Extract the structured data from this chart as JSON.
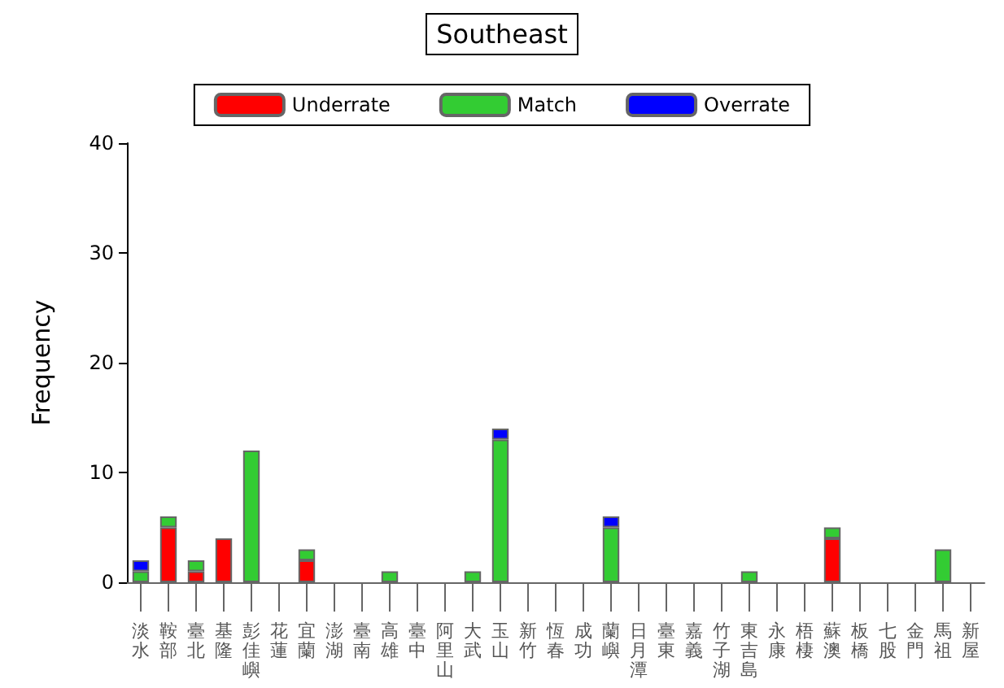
{
  "chart_data": {
    "type": "bar",
    "title": "Southeast",
    "ylabel": "Frequency",
    "stacked": true,
    "legend": "top",
    "grid": false,
    "categories": [
      "淡水",
      "鞍部",
      "臺北",
      "基隆",
      "彭佳嶼",
      "花蓮",
      "宜蘭",
      "澎湖",
      "臺南",
      "高雄",
      "臺中",
      "阿里山",
      "大武",
      "玉山",
      "新竹",
      "恆春",
      "成功",
      "蘭嶼",
      "日月潭",
      "臺東",
      "嘉義",
      "竹子湖",
      "東吉島",
      "永康",
      "梧棲",
      "蘇澳",
      "板橋",
      "七股",
      "金門",
      "馬祖",
      "新屋"
    ],
    "series": [
      {
        "name": "Underrate",
        "color": "#ff0000",
        "values": [
          0,
          5,
          1,
          4,
          0,
          0,
          2,
          0,
          0,
          0,
          0,
          0,
          0,
          0,
          0,
          0,
          0,
          0,
          0,
          0,
          0,
          0,
          0,
          0,
          0,
          4,
          0,
          0,
          0,
          0,
          0
        ]
      },
      {
        "name": "Match",
        "color": "#33cc33",
        "values": [
          1,
          1,
          1,
          0,
          12,
          0,
          1,
          0,
          0,
          1,
          0,
          0,
          1,
          13,
          0,
          0,
          0,
          5,
          0,
          0,
          0,
          0,
          1,
          0,
          0,
          1,
          0,
          0,
          0,
          3,
          0
        ]
      },
      {
        "name": "Overrate",
        "color": "#0000ff",
        "values": [
          1,
          0,
          0,
          0,
          0,
          0,
          0,
          0,
          0,
          0,
          0,
          0,
          0,
          1,
          0,
          0,
          0,
          1,
          0,
          0,
          0,
          0,
          0,
          0,
          0,
          0,
          0,
          0,
          0,
          0,
          0
        ]
      }
    ],
    "ylim": [
      0,
      40
    ],
    "yticks": [
      0,
      10,
      20,
      30,
      40
    ]
  }
}
